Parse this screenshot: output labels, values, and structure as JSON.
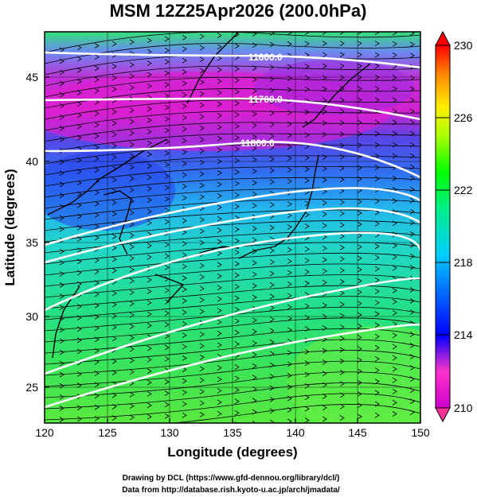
{
  "title": "MSM 12Z25Apr2026 (200.0hPa)",
  "xlabel": "Longitude (degrees)",
  "ylabel": "Latitude  (degrees)",
  "x_ticks": [
    "120",
    "125",
    "130",
    "135",
    "140",
    "145",
    "150"
  ],
  "y_ticks": [
    "25",
    "30",
    "35",
    "40",
    "45"
  ],
  "colorbar": {
    "labels": [
      "230",
      "226",
      "222",
      "218",
      "214",
      "210"
    ],
    "min": 210,
    "max": 230,
    "stops": [
      "#cc00cc",
      "#ff33cc",
      "#0000ff",
      "#00ccff",
      "#00ee88",
      "#00ff00",
      "#aaff00",
      "#ffee00",
      "#ff8800",
      "#ff0000"
    ]
  },
  "contours": {
    "labels": [
      "11600.0",
      "11700.0",
      "11800.0"
    ]
  },
  "credits": {
    "line1": "Drawing by DCL (https://www.gfd-dennou.org/library/dcl/)",
    "line2": "Data from http://database.rish.kyoto-u.ac.jp/arch/jmadata/"
  },
  "chart_data": {
    "type": "heatmap",
    "title": "MSM 12Z25Apr2026 (200.0hPa)",
    "xlabel": "Longitude (degrees)",
    "ylabel": "Latitude  (degrees)",
    "xlim": [
      120,
      150
    ],
    "ylim": [
      22.4,
      47.6
    ],
    "colorbar_range": [
      210,
      230
    ],
    "colorbar_ticks": [
      210,
      214,
      218,
      222,
      226,
      230
    ],
    "contour_levels_labeled": [
      11600.0,
      11700.0,
      11800.0
    ],
    "grid": true
  }
}
